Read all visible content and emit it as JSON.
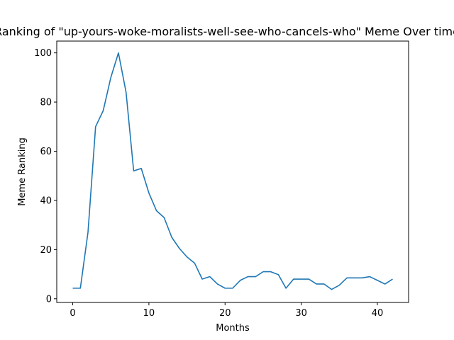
{
  "chart_data": {
    "type": "line",
    "title": "Ranking of \"up-yours-woke-moralists-well-see-who-cancels-who\" Meme Over time",
    "xlabel": "Months",
    "ylabel": "Meme Ranking",
    "xlim": [
      -2.1,
      44.1
    ],
    "ylim": [
      -1.5,
      104.8
    ],
    "xticks": [
      0,
      10,
      20,
      30,
      40
    ],
    "yticks": [
      0,
      20,
      40,
      60,
      80,
      100
    ],
    "grid": false,
    "series": [
      {
        "color": "#1f77b4",
        "x": [
          0,
          1,
          2,
          3,
          4,
          5,
          6,
          7,
          8,
          9,
          10,
          11,
          12,
          13,
          14,
          15,
          16,
          17,
          18,
          19,
          20,
          21,
          22,
          23,
          24,
          25,
          26,
          27,
          28,
          29,
          30,
          31,
          32,
          33,
          34,
          35,
          36,
          37,
          38,
          39,
          40,
          41,
          42
        ],
        "y": [
          4.3,
          4.3,
          27,
          70,
          76.5,
          90,
          100,
          84,
          52,
          53,
          43,
          35.8,
          33,
          25,
          20.5,
          17,
          14.5,
          8,
          9,
          6,
          4.3,
          4.3,
          7.5,
          9,
          9,
          11,
          11,
          9.8,
          4.3,
          8,
          8,
          8,
          6,
          6,
          3.8,
          5.5,
          8.5,
          8.5,
          8.5,
          9,
          7.5,
          6,
          8
        ]
      }
    ]
  }
}
